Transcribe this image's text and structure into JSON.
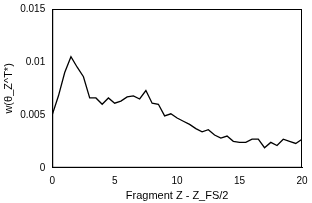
{
  "chart_data": {
    "type": "line",
    "x_label": "Fragment Z - Z_FS/2",
    "y_label": "w(θ_Z^T*)",
    "x": [
      0,
      0.5,
      1,
      1.5,
      2,
      2.5,
      3,
      3.5,
      4,
      4.5,
      5,
      5.5,
      6,
      6.5,
      7,
      7.5,
      8,
      8.5,
      9,
      9.5,
      10,
      10.5,
      11,
      11.5,
      12,
      12.5,
      13,
      13.5,
      14,
      14.5,
      15,
      15.5,
      16,
      16.5,
      17,
      17.5,
      18,
      18.5,
      19,
      19.5,
      20
    ],
    "values": [
      0.005,
      0.0068,
      0.009,
      0.0105,
      0.0095,
      0.0086,
      0.0066,
      0.0066,
      0.006,
      0.0066,
      0.0061,
      0.0063,
      0.0067,
      0.0068,
      0.0065,
      0.0073,
      0.0061,
      0.006,
      0.0049,
      0.0051,
      0.0047,
      0.0044,
      0.0041,
      0.0037,
      0.0034,
      0.0036,
      0.0031,
      0.0028,
      0.003,
      0.0025,
      0.0024,
      0.0024,
      0.0027,
      0.0027,
      0.0019,
      0.0024,
      0.0021,
      0.0027,
      0.0025,
      0.0023,
      0.0027
    ],
    "color": "#000000",
    "line_style": "solid",
    "xlim": [
      0,
      20
    ],
    "xticks": [
      0,
      5,
      10,
      15,
      20
    ],
    "ylim": [
      0,
      0.015
    ],
    "yticks": [
      0,
      0.005,
      0.01,
      0.015
    ],
    "grid": false
  }
}
